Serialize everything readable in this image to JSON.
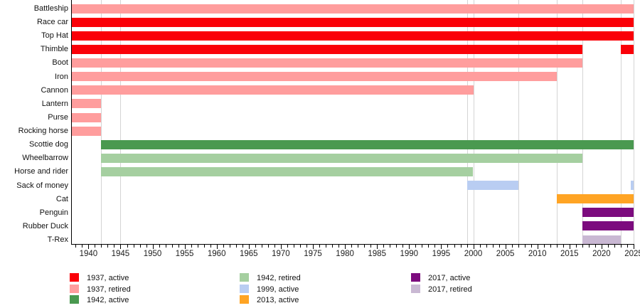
{
  "chart_data": {
    "type": "bar",
    "subtype": "horizontal-gantt-timeline",
    "title": "",
    "xlabel": "",
    "ylabel": "",
    "grid": "vertical event-year gridlines only",
    "legend_position": "bottom, three columns",
    "x_axis": {
      "min": 1937.3,
      "max": 2025,
      "major_tick_labels": [
        "1940",
        "1945",
        "1950",
        "1955",
        "1960",
        "1965",
        "1970",
        "1975",
        "1980",
        "1985",
        "1990",
        "1995",
        "2000",
        "2005",
        "2010",
        "2015",
        "2020",
        "2025"
      ],
      "major_tick_interval": 5,
      "minor_tick_interval": 1
    },
    "gridline_years": [
      1942,
      1945,
      1999,
      2000,
      2007,
      2013,
      2017,
      2023,
      2025
    ],
    "colors": {
      "c1937_active": "#fa0008",
      "c1937_retired": "#ff9d9d",
      "c1942_active": "#4a9950",
      "c1942_retired": "#a5cfa0",
      "c1999_active": "#b9cdf2",
      "c2013_active": "#ffa424",
      "c2017_active": "#7c0b7e",
      "c2017_retired": "#c9b8d3"
    },
    "categories": [
      "Battleship",
      "Race car",
      "Top Hat",
      "Thimble",
      "Boot",
      "Iron",
      "Cannon",
      "Lantern",
      "Purse",
      "Rocking horse",
      "Scottie dog",
      "Wheelbarrow",
      "Horse and rider",
      "Sack of money",
      "Cat",
      "Penguin",
      "Rubber Duck",
      "T-Rex"
    ],
    "bars": [
      {
        "token": "Battleship",
        "status": "1937, retired",
        "color": "c1937_retired",
        "segments": [
          [
            1937,
            2025
          ]
        ]
      },
      {
        "token": "Race car",
        "status": "1937, active",
        "color": "c1937_active",
        "segments": [
          [
            1937,
            2025
          ]
        ]
      },
      {
        "token": "Top Hat",
        "status": "1937, active",
        "color": "c1937_active",
        "segments": [
          [
            1937,
            2025
          ]
        ]
      },
      {
        "token": "Thimble",
        "status": "1937, active",
        "color": "c1937_active",
        "segments": [
          [
            1937,
            2017
          ],
          [
            2023,
            2025
          ]
        ]
      },
      {
        "token": "Boot",
        "status": "1937, retired",
        "color": "c1937_retired",
        "segments": [
          [
            1937,
            2017
          ]
        ]
      },
      {
        "token": "Iron",
        "status": "1937, retired",
        "color": "c1937_retired",
        "segments": [
          [
            1937,
            2013
          ]
        ]
      },
      {
        "token": "Cannon",
        "status": "1937, retired",
        "color": "c1937_retired",
        "segments": [
          [
            1937,
            2000
          ]
        ]
      },
      {
        "token": "Lantern",
        "status": "1937, retired",
        "color": "c1937_retired",
        "segments": [
          [
            1937,
            1942
          ]
        ]
      },
      {
        "token": "Purse",
        "status": "1937, retired",
        "color": "c1937_retired",
        "segments": [
          [
            1937,
            1942
          ]
        ]
      },
      {
        "token": "Rocking horse",
        "status": "1937, retired",
        "color": "c1937_retired",
        "segments": [
          [
            1937,
            1942
          ]
        ]
      },
      {
        "token": "Scottie dog",
        "status": "1942, active",
        "color": "c1942_active",
        "segments": [
          [
            1942,
            2025
          ]
        ]
      },
      {
        "token": "Wheelbarrow",
        "status": "1942, retired",
        "color": "c1942_retired",
        "segments": [
          [
            1942,
            2017
          ]
        ]
      },
      {
        "token": "Horse and rider",
        "status": "1942, retired",
        "color": "c1942_retired",
        "segments": [
          [
            1942,
            2000
          ]
        ]
      },
      {
        "token": "Sack of money",
        "status": "1999, active",
        "color": "c1999_active",
        "segments": [
          [
            1999,
            2007
          ],
          [
            2024.6,
            2025
          ]
        ]
      },
      {
        "token": "Cat",
        "status": "2013, active",
        "color": "c2013_active",
        "segments": [
          [
            2013,
            2025
          ]
        ]
      },
      {
        "token": "Penguin",
        "status": "2017, active",
        "color": "c2017_active",
        "segments": [
          [
            2017,
            2025
          ]
        ]
      },
      {
        "token": "Rubber Duck",
        "status": "2017, active",
        "color": "c2017_active",
        "segments": [
          [
            2017,
            2025
          ]
        ]
      },
      {
        "token": "T-Rex",
        "status": "2017, retired",
        "color": "c2017_retired",
        "segments": [
          [
            2017,
            2023
          ]
        ]
      }
    ],
    "legend": {
      "columns": [
        {
          "items": [
            {
              "label": "1937, active",
              "color": "c1937_active"
            },
            {
              "label": "1937, retired",
              "color": "c1937_retired"
            },
            {
              "label": "1942, active",
              "color": "c1942_active"
            }
          ]
        },
        {
          "items": [
            {
              "label": "1942, retired",
              "color": "c1942_retired"
            },
            {
              "label": "1999, active",
              "color": "c1999_active"
            },
            {
              "label": "2013, active",
              "color": "c2013_active"
            }
          ]
        },
        {
          "items": [
            {
              "label": "2017, active",
              "color": "c2017_active"
            },
            {
              "label": "2017, retired",
              "color": "c2017_retired"
            }
          ]
        }
      ]
    }
  }
}
